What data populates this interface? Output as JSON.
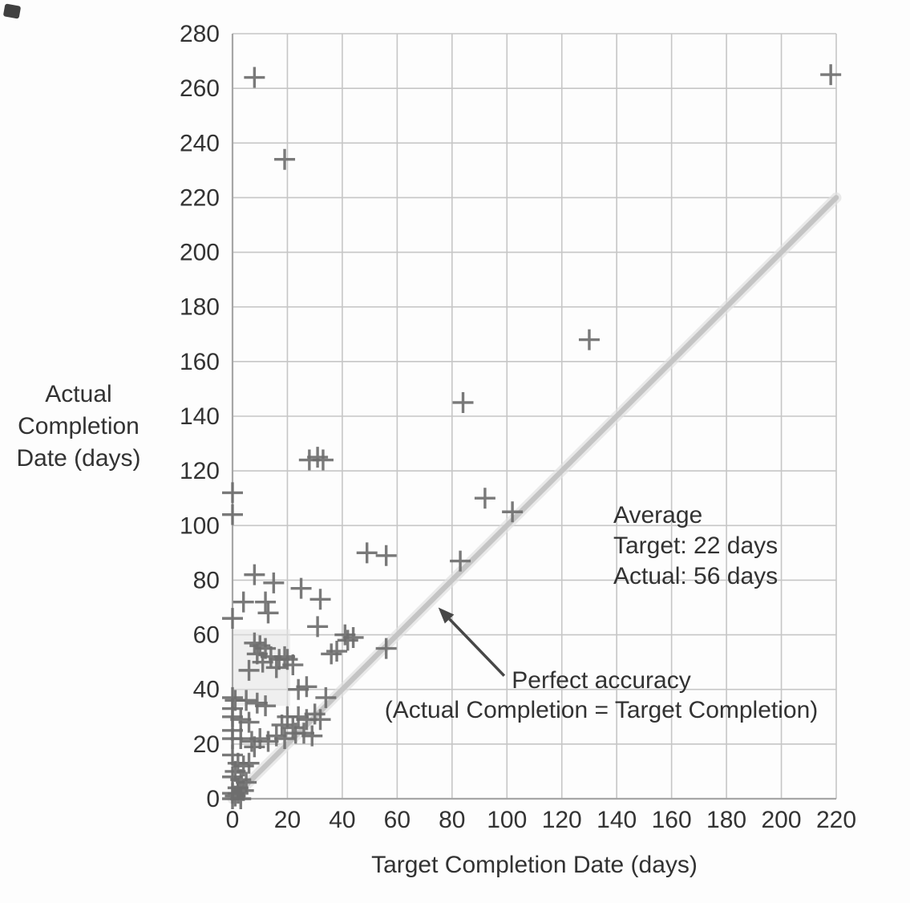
{
  "colors": {
    "grid": "#c6c6c6",
    "axis": "#a6a6a6",
    "marker": "#6e6e6e",
    "reference_line": "#c4c4c4",
    "reference_glow": "#e1e1e1",
    "highlight": "#e4e4e4",
    "arrow": "#474747",
    "text": "#333333"
  },
  "chart_data": {
    "type": "scatter",
    "marker": "plus",
    "title": "",
    "xlabel": "Target Completion Date (days)",
    "ylabel": "Actual Completion Date (days)",
    "ylabel_lines": [
      "Actual",
      "Completion",
      "Date (days)"
    ],
    "xlim": [
      0,
      220
    ],
    "ylim": [
      0,
      280
    ],
    "x_ticks": [
      0,
      20,
      40,
      60,
      80,
      100,
      120,
      140,
      160,
      180,
      200,
      220
    ],
    "y_ticks": [
      0,
      20,
      40,
      60,
      80,
      100,
      120,
      140,
      160,
      180,
      200,
      220,
      240,
      260,
      280
    ],
    "grid": true,
    "legend": "none",
    "annotation": {
      "lines": [
        "Average",
        "Target: 22 days",
        "Actual: 56 days"
      ]
    },
    "reference_line": {
      "from": [
        0,
        0
      ],
      "to": [
        220,
        220
      ],
      "label": "Perfect accuracy",
      "sublabel": "(Actual Completion = Target Completion)",
      "arrow": {
        "from": [
          99,
          45
        ],
        "to": [
          75,
          70
        ]
      }
    },
    "highlight_region": [
      [
        0,
        62
      ],
      [
        21,
        62
      ],
      [
        21,
        34
      ],
      [
        0,
        34
      ]
    ],
    "points": [
      [
        8,
        264
      ],
      [
        19,
        234
      ],
      [
        218,
        265
      ],
      [
        130,
        168
      ],
      [
        84,
        145
      ],
      [
        28,
        124
      ],
      [
        31,
        125
      ],
      [
        33,
        124
      ],
      [
        0,
        112
      ],
      [
        92,
        110
      ],
      [
        102,
        105
      ],
      [
        0,
        104
      ],
      [
        49,
        90
      ],
      [
        56,
        89
      ],
      [
        83,
        87
      ],
      [
        8,
        82
      ],
      [
        15,
        79
      ],
      [
        25,
        77
      ],
      [
        4,
        72
      ],
      [
        12,
        72
      ],
      [
        32,
        73
      ],
      [
        13,
        68
      ],
      [
        0,
        66
      ],
      [
        31,
        63
      ],
      [
        41,
        60
      ],
      [
        44,
        59
      ],
      [
        42,
        58
      ],
      [
        38,
        54
      ],
      [
        36,
        53
      ],
      [
        56,
        55
      ],
      [
        8,
        57
      ],
      [
        10,
        56
      ],
      [
        12,
        55
      ],
      [
        9,
        53
      ],
      [
        14,
        52
      ],
      [
        17,
        51
      ],
      [
        19,
        52
      ],
      [
        11,
        50
      ],
      [
        20,
        51
      ],
      [
        16,
        48
      ],
      [
        6,
        47
      ],
      [
        22,
        49
      ],
      [
        0,
        37
      ],
      [
        1,
        36
      ],
      [
        5,
        36
      ],
      [
        9,
        35
      ],
      [
        24,
        40
      ],
      [
        27,
        41
      ],
      [
        12,
        34
      ],
      [
        34,
        37
      ],
      [
        0,
        33
      ],
      [
        0,
        30
      ],
      [
        3,
        29
      ],
      [
        6,
        28
      ],
      [
        20,
        30
      ],
      [
        24,
        30
      ],
      [
        27,
        29
      ],
      [
        30,
        31
      ],
      [
        32,
        29
      ],
      [
        18,
        27
      ],
      [
        22,
        26
      ],
      [
        0,
        25
      ],
      [
        0,
        22
      ],
      [
        3,
        22
      ],
      [
        7,
        21
      ],
      [
        10,
        22
      ],
      [
        13,
        21
      ],
      [
        16,
        23
      ],
      [
        19,
        22
      ],
      [
        23,
        24
      ],
      [
        26,
        24
      ],
      [
        29,
        23
      ],
      [
        8,
        19
      ],
      [
        0,
        16
      ],
      [
        2,
        13
      ],
      [
        4,
        12
      ],
      [
        6,
        13
      ],
      [
        1,
        10
      ],
      [
        0,
        8
      ],
      [
        3,
        7
      ],
      [
        5,
        6
      ],
      [
        2,
        4
      ],
      [
        0,
        0
      ],
      [
        1,
        1
      ],
      [
        2,
        2
      ],
      [
        0,
        2
      ],
      [
        4,
        3
      ],
      [
        3,
        0
      ]
    ]
  }
}
